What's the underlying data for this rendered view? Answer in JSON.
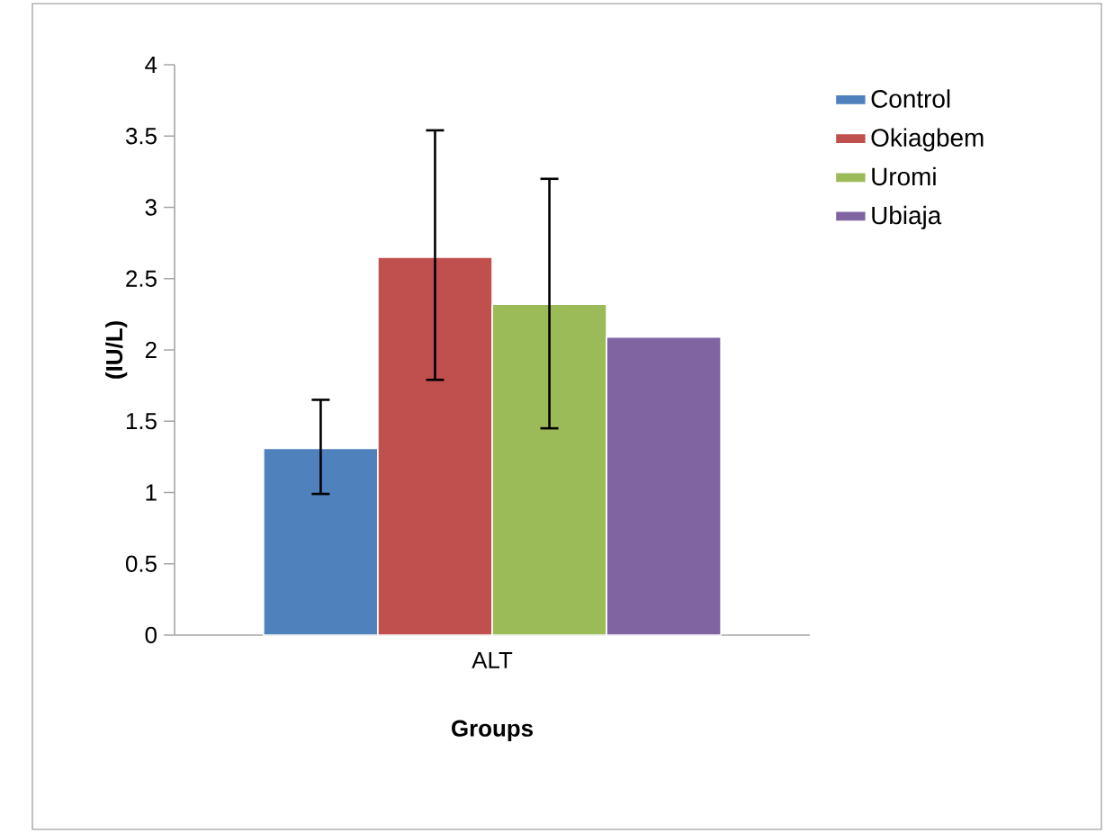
{
  "chart_data": {
    "type": "bar",
    "categories": [
      "ALT"
    ],
    "xlabel": "Groups",
    "ylabel": "(IU/L)",
    "series": [
      {
        "name": "Control",
        "color": "#4f81bd",
        "values": [
          1.31
        ],
        "errors": [
          [
            0.99,
            1.65
          ]
        ]
      },
      {
        "name": "Okiagbem",
        "color": "#c0504d",
        "values": [
          2.65
        ],
        "errors": [
          [
            1.79,
            3.54
          ]
        ]
      },
      {
        "name": "Uromi",
        "color": "#9bbb59",
        "values": [
          2.32
        ],
        "errors": [
          [
            1.45,
            3.2
          ]
        ]
      },
      {
        "name": "Ubiaja",
        "color": "#8064a2",
        "values": [
          2.09
        ],
        "errors": [
          null
        ]
      }
    ],
    "ylim": [
      0,
      4
    ],
    "yticks": [
      0,
      0.5,
      1,
      1.5,
      2,
      2.5,
      3,
      3.5,
      4
    ],
    "legend": "right"
  }
}
